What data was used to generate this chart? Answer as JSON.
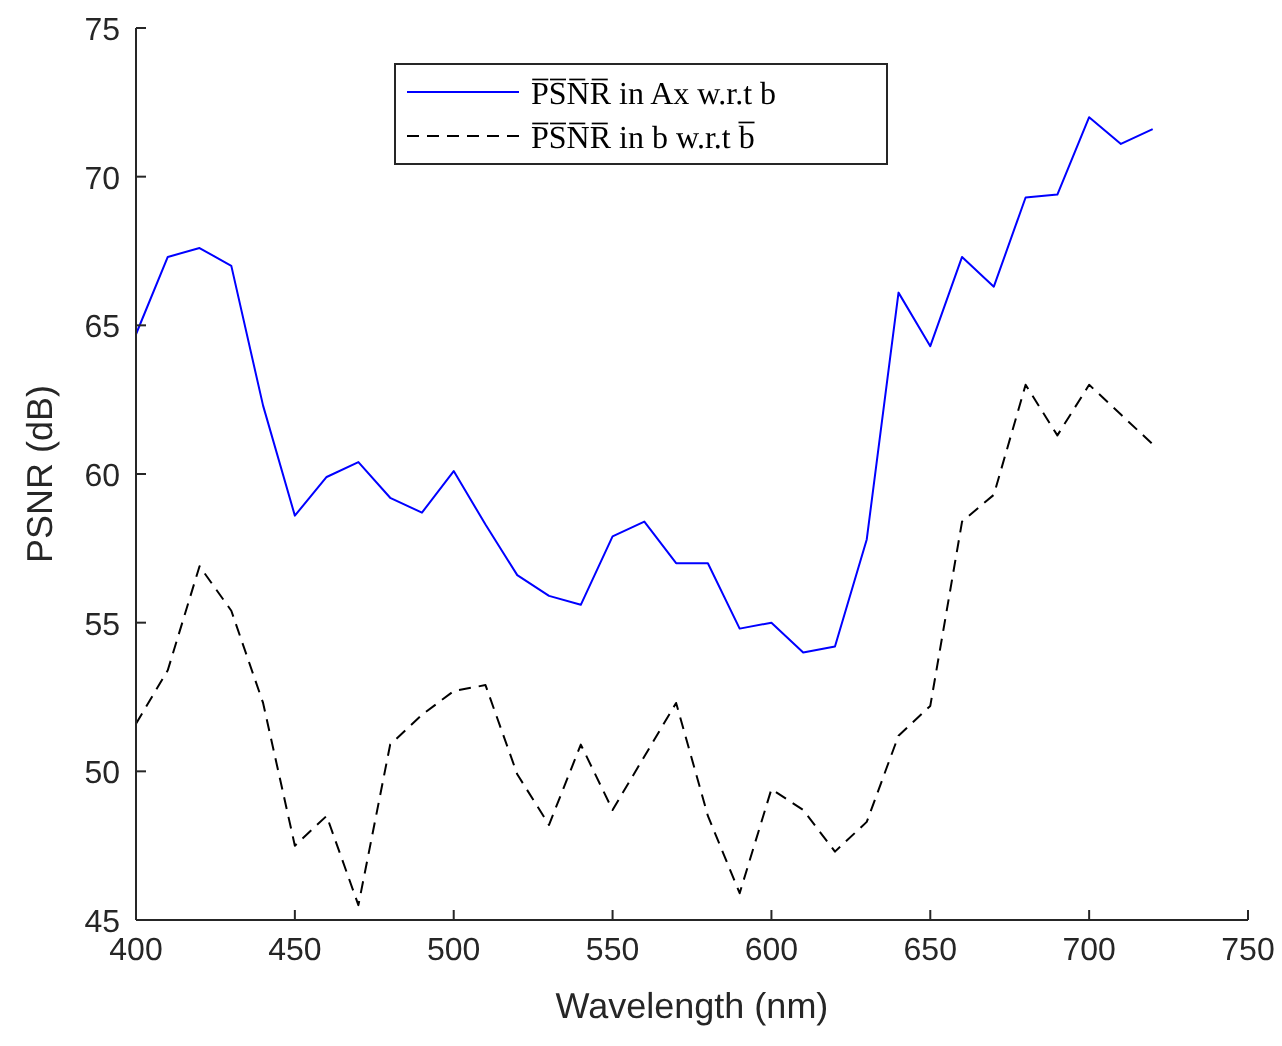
{
  "chart_data": {
    "type": "line",
    "xlabel": "Wavelength (nm)",
    "ylabel": "PSNR (dB)",
    "x": [
      400,
      410,
      420,
      430,
      440,
      450,
      460,
      470,
      480,
      490,
      500,
      510,
      520,
      530,
      540,
      550,
      560,
      570,
      580,
      590,
      600,
      610,
      620,
      630,
      640,
      650,
      660,
      670,
      680,
      690,
      700,
      710,
      720
    ],
    "series": [
      {
        "name": "P̅S̅N̅R̅ in Ax w.r.t b",
        "color": "#0000ff",
        "line_style": "solid",
        "values": [
          64.7,
          67.3,
          67.6,
          67.0,
          62.3,
          58.6,
          59.9,
          60.4,
          59.2,
          58.7,
          60.1,
          58.3,
          56.6,
          55.9,
          55.6,
          57.9,
          58.4,
          57.0,
          57.0,
          54.8,
          55.0,
          54.0,
          54.2,
          57.8,
          66.1,
          64.3,
          67.3,
          66.3,
          69.3,
          69.4,
          72.0,
          71.1,
          71.6
        ]
      },
      {
        "name": "P̅S̅N̅R̅ in b w.r.t b̅",
        "color": "#000000",
        "line_style": "dashed",
        "values": [
          51.6,
          53.4,
          56.9,
          55.4,
          52.3,
          47.5,
          48.5,
          45.5,
          50.9,
          51.9,
          52.7,
          52.9,
          49.9,
          48.2,
          50.9,
          48.7,
          50.5,
          52.3,
          48.5,
          45.9,
          49.4,
          48.7,
          47.3,
          48.3,
          51.2,
          52.2,
          58.4,
          59.3,
          63.0,
          61.3,
          63.0,
          62.0,
          61.0
        ]
      }
    ],
    "xlim": [
      400,
      750
    ],
    "xticks": [
      400,
      450,
      500,
      550,
      600,
      650,
      700,
      750
    ],
    "ylim": [
      45,
      75
    ],
    "yticks": [
      45,
      50,
      55,
      60,
      65,
      70,
      75
    ],
    "grid": false,
    "legend": "top"
  }
}
